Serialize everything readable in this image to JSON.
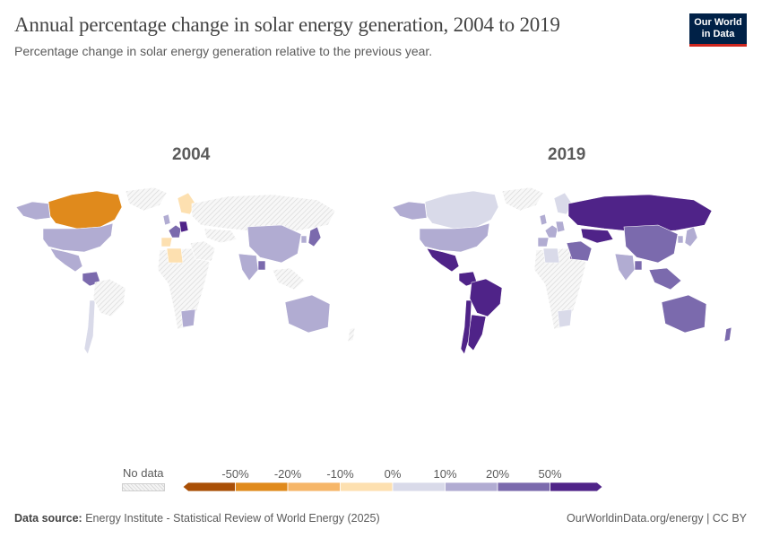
{
  "header": {
    "title": "Annual percentage change in solar energy generation, 2004 to 2019",
    "subtitle": "Percentage change in solar energy generation relative to the previous year."
  },
  "logo": {
    "line1": "Our World",
    "line2": "in Data"
  },
  "maps": [
    {
      "year": "2004",
      "regions": [
        {
          "name": "Canada",
          "bin": -20
        },
        {
          "name": "United States",
          "bin": 20
        },
        {
          "name": "Mexico",
          "bin": 20
        },
        {
          "name": "Alaska",
          "bin": 20
        },
        {
          "name": "Venezuela",
          "bin": 50
        },
        {
          "name": "Chile",
          "bin": 10
        },
        {
          "name": "Greenland",
          "bin": null
        },
        {
          "name": "Brazil",
          "bin": null
        },
        {
          "name": "Africa",
          "bin": null
        },
        {
          "name": "Algeria",
          "bin": 0
        },
        {
          "name": "South Africa",
          "bin": 20
        },
        {
          "name": "United Kingdom",
          "bin": 20
        },
        {
          "name": "Western Europe",
          "bin": 50
        },
        {
          "name": "Germany",
          "bin": 60
        },
        {
          "name": "Scandinavia",
          "bin": 0
        },
        {
          "name": "Spain",
          "bin": 0
        },
        {
          "name": "Russia",
          "bin": null
        },
        {
          "name": "Middle East",
          "bin": null
        },
        {
          "name": "Central Asia",
          "bin": null
        },
        {
          "name": "China",
          "bin": 20
        },
        {
          "name": "India",
          "bin": 20
        },
        {
          "name": "Bangladesh",
          "bin": 50
        },
        {
          "name": "Japan",
          "bin": 50
        },
        {
          "name": "South Korea",
          "bin": 20
        },
        {
          "name": "Southeast Asia",
          "bin": null
        },
        {
          "name": "Australia",
          "bin": 20
        },
        {
          "name": "New Zealand",
          "bin": null
        }
      ]
    },
    {
      "year": "2019",
      "regions": [
        {
          "name": "Canada",
          "bin": 10
        },
        {
          "name": "United States",
          "bin": 20
        },
        {
          "name": "Mexico",
          "bin": 60
        },
        {
          "name": "Alaska",
          "bin": 20
        },
        {
          "name": "Venezuela",
          "bin": 60
        },
        {
          "name": "Chile",
          "bin": 60
        },
        {
          "name": "Argentina",
          "bin": 60
        },
        {
          "name": "Greenland",
          "bin": null
        },
        {
          "name": "Brazil",
          "bin": 60
        },
        {
          "name": "Africa",
          "bin": null
        },
        {
          "name": "Algeria",
          "bin": 10
        },
        {
          "name": "Egypt",
          "bin": 60
        },
        {
          "name": "South Africa",
          "bin": 10
        },
        {
          "name": "United Kingdom",
          "bin": 20
        },
        {
          "name": "Western Europe",
          "bin": 20
        },
        {
          "name": "Germany",
          "bin": 20
        },
        {
          "name": "Scandinavia",
          "bin": 10
        },
        {
          "name": "Spain",
          "bin": 20
        },
        {
          "name": "Russia",
          "bin": 60
        },
        {
          "name": "Middle East",
          "bin": 50
        },
        {
          "name": "Central Asia",
          "bin": 60
        },
        {
          "name": "China",
          "bin": 50
        },
        {
          "name": "India",
          "bin": 20
        },
        {
          "name": "Bangladesh",
          "bin": 50
        },
        {
          "name": "Japan",
          "bin": 20
        },
        {
          "name": "South Korea",
          "bin": 20
        },
        {
          "name": "Southeast Asia",
          "bin": 50
        },
        {
          "name": "Australia",
          "bin": 50
        },
        {
          "name": "New Zealand",
          "bin": 50
        }
      ]
    }
  ],
  "legend": {
    "no_data_label": "No data",
    "ticks": [
      "-50%",
      "-20%",
      "-10%",
      "0%",
      "10%",
      "20%",
      "50%"
    ],
    "bins": [
      {
        "bin": -50,
        "color": "#a94f06"
      },
      {
        "bin": -20,
        "color": "#e08a1c"
      },
      {
        "bin": -10,
        "color": "#f6b668"
      },
      {
        "bin": 0,
        "color": "#fde0b0"
      },
      {
        "bin": 10,
        "color": "#d9dae9"
      },
      {
        "bin": 20,
        "color": "#b1acd2"
      },
      {
        "bin": 50,
        "color": "#7b6aad"
      },
      {
        "bin": 60,
        "color": "#4f2388"
      }
    ]
  },
  "footer": {
    "source_label": "Data source:",
    "source": "Energy Institute - Statistical Review of World Energy (2025)",
    "credit": "OurWorldinData.org/energy | CC BY"
  }
}
